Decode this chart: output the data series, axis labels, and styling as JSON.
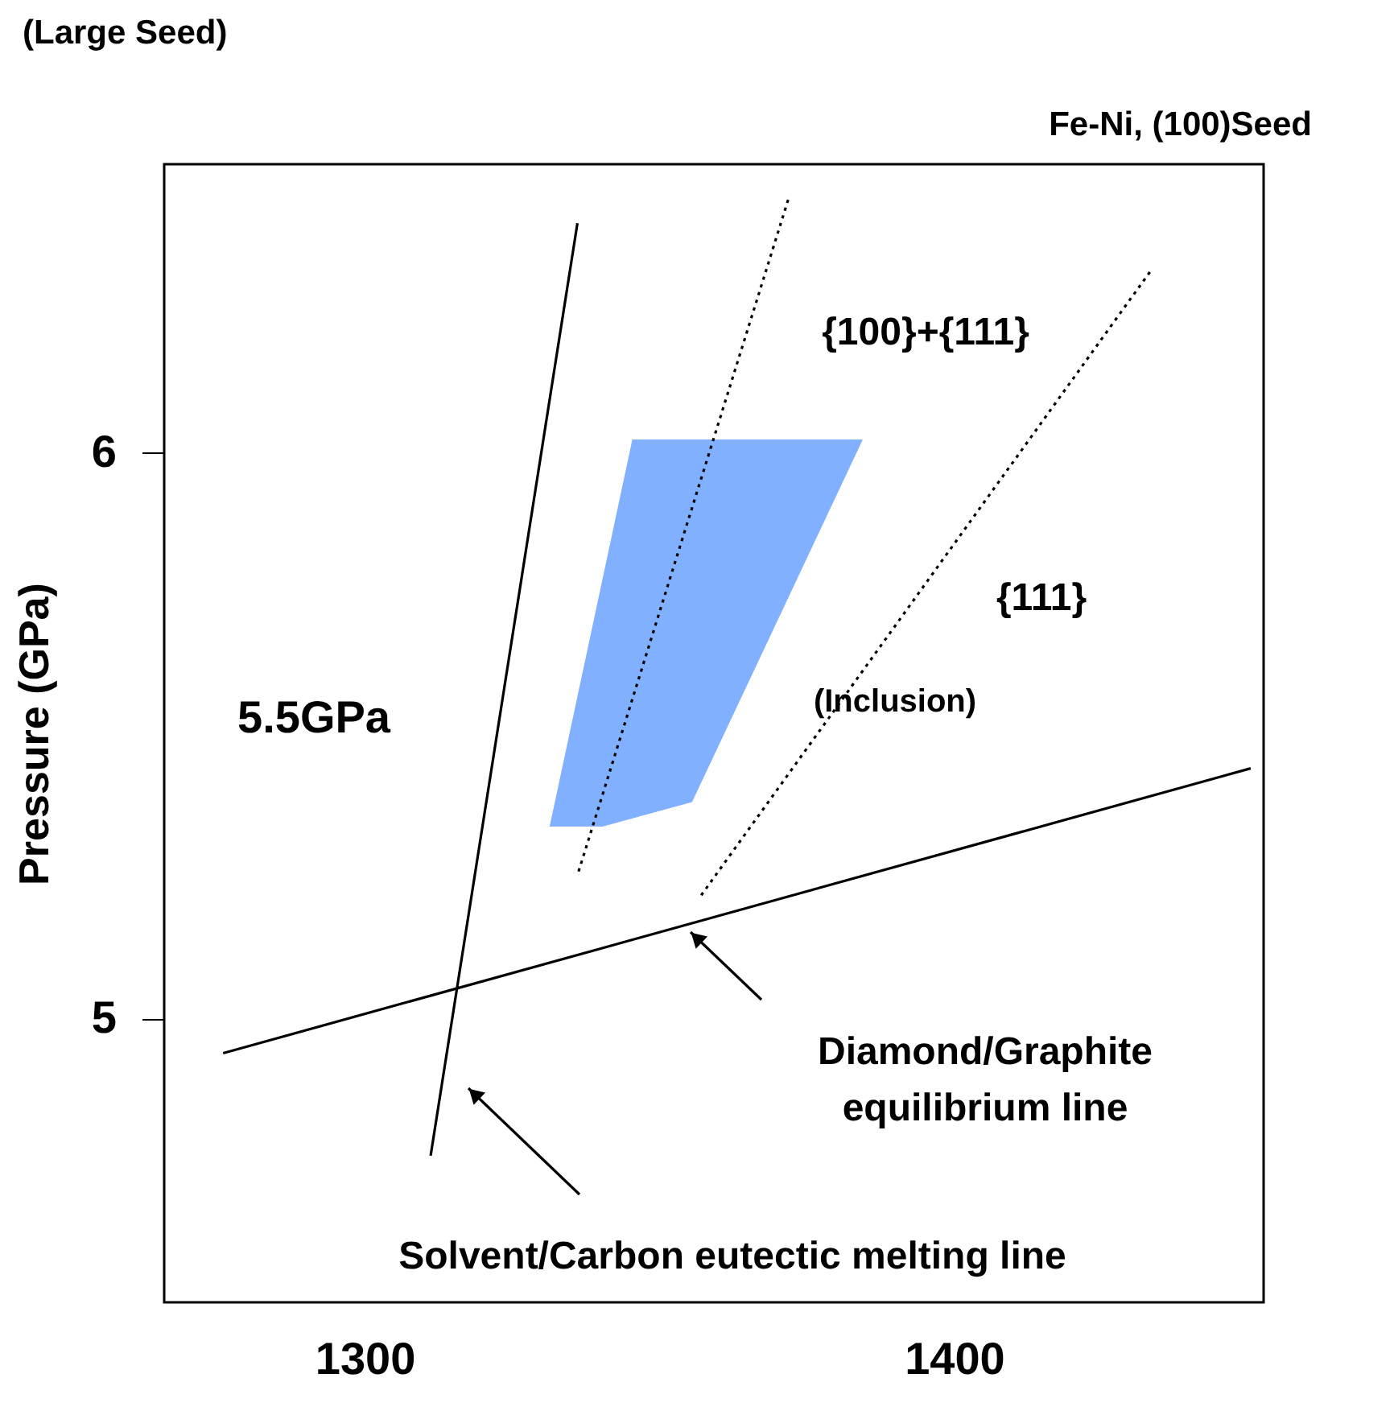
{
  "chart_data": {
    "type": "line",
    "title": "(Large Seed)",
    "subtitle": "Fe-Ni, (100)Seed",
    "ylabel": "Pressure (GPa)",
    "xlim": [
      1266,
      1452.5
    ],
    "ylim": [
      4.5,
      6.51
    ],
    "xticks": [
      1300,
      1400
    ],
    "yticks": [
      5,
      6
    ],
    "grid": false,
    "series": [
      {
        "type": "area",
        "color": "#80b0ff",
        "x": [
          1345.4,
          1384.4,
          1355.5,
          1340.4,
          1331.4
        ],
        "values": [
          6.023,
          6.023,
          5.384,
          5.341,
          5.341
        ]
      },
      {
        "color": "#000000",
        "line_style": "solid",
        "x": [
          1311.2,
          1336.1
        ],
        "values": [
          4.759,
          6.406
        ]
      },
      {
        "color": "#000000",
        "line_style": "solid",
        "x": [
          1276,
          1450.3
        ],
        "values": [
          4.94,
          5.443
        ]
      },
      {
        "color": "#000000",
        "line_style": "dotted",
        "x": [
          1336.3,
          1371.9
        ],
        "values": [
          5.261,
          6.449
        ]
      },
      {
        "color": "#000000",
        "line_style": "dotted",
        "x": [
          1357.1,
          1433.3
        ],
        "values": [
          5.219,
          6.321
        ]
      }
    ],
    "annotations": [
      "{100}+{111}",
      "{111}",
      "(Inclusion)",
      "5.5GPa",
      "Diamond/Graphite\nequilibrium line",
      "Solvent/Carbon eutectic melting line"
    ]
  }
}
